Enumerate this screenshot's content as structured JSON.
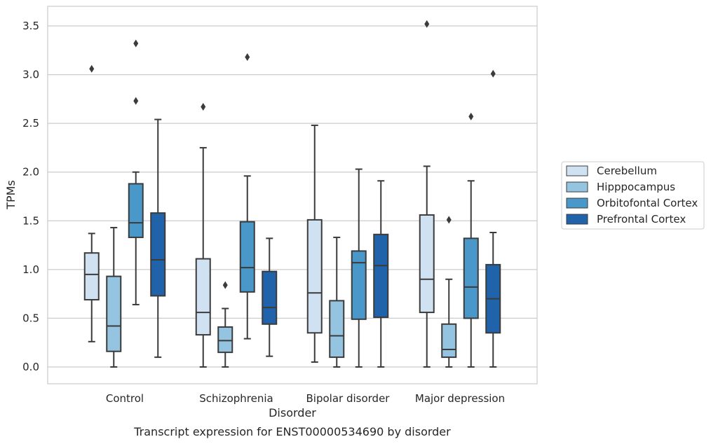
{
  "chart_data": {
    "type": "box",
    "caption": "Transcript expression for ENST00000534690 by disorder",
    "xlabel": "Disorder",
    "ylabel": "TPMs",
    "ylim": [
      -0.17,
      3.7
    ],
    "yticks": [
      0.0,
      0.5,
      1.0,
      1.5,
      2.0,
      2.5,
      3.0,
      3.5
    ],
    "ytick_labels": [
      "0.0",
      "0.5",
      "1.0",
      "1.5",
      "2.0",
      "2.5",
      "3.0",
      "3.5"
    ],
    "grid": "horizontal",
    "legend_placement": "right",
    "categories": [
      "Control",
      "Schizophrenia",
      "Bipolar disorder",
      "Major depression"
    ],
    "series": [
      {
        "name": "Cerebellum",
        "color": "#d0e1f2",
        "boxes": [
          {
            "whislo": 0.26,
            "q1": 0.69,
            "med": 0.95,
            "q3": 1.17,
            "whishi": 1.37,
            "fliers": [
              3.06
            ]
          },
          {
            "whislo": 0.0,
            "q1": 0.33,
            "med": 0.56,
            "q3": 1.11,
            "whishi": 2.25,
            "fliers": [
              2.67
            ]
          },
          {
            "whislo": 0.05,
            "q1": 0.35,
            "med": 0.76,
            "q3": 1.51,
            "whishi": 2.48,
            "fliers": []
          },
          {
            "whislo": 0.0,
            "q1": 0.56,
            "med": 0.9,
            "q3": 1.56,
            "whishi": 2.06,
            "fliers": [
              3.52
            ]
          }
        ]
      },
      {
        "name": "Hipppocampus",
        "color": "#94c4df",
        "boxes": [
          {
            "whislo": 0.0,
            "q1": 0.16,
            "med": 0.42,
            "q3": 0.93,
            "whishi": 1.43,
            "fliers": []
          },
          {
            "whislo": 0.0,
            "q1": 0.15,
            "med": 0.27,
            "q3": 0.41,
            "whishi": 0.6,
            "fliers": [
              0.84
            ]
          },
          {
            "whislo": 0.0,
            "q1": 0.1,
            "med": 0.32,
            "q3": 0.68,
            "whishi": 1.33,
            "fliers": []
          },
          {
            "whislo": 0.0,
            "q1": 0.1,
            "med": 0.18,
            "q3": 0.44,
            "whishi": 0.9,
            "fliers": [
              1.51
            ]
          }
        ]
      },
      {
        "name": "Orbitofontal Cortex",
        "color": "#4a98c9",
        "boxes": [
          {
            "whislo": 0.64,
            "q1": 1.33,
            "med": 1.48,
            "q3": 1.88,
            "whishi": 2.0,
            "fliers": [
              2.73,
              3.32
            ]
          },
          {
            "whislo": 0.29,
            "q1": 0.77,
            "med": 1.02,
            "q3": 1.49,
            "whishi": 1.96,
            "fliers": [
              3.18
            ]
          },
          {
            "whislo": 0.0,
            "q1": 0.49,
            "med": 1.07,
            "q3": 1.19,
            "whishi": 2.03,
            "fliers": []
          },
          {
            "whislo": 0.0,
            "q1": 0.5,
            "med": 0.82,
            "q3": 1.32,
            "whishi": 1.91,
            "fliers": [
              2.57
            ]
          }
        ]
      },
      {
        "name": "Prefrontal Cortex",
        "color": "#2163aa",
        "boxes": [
          {
            "whislo": 0.1,
            "q1": 0.73,
            "med": 1.1,
            "q3": 1.58,
            "whishi": 2.54,
            "fliers": []
          },
          {
            "whislo": 0.11,
            "q1": 0.44,
            "med": 0.61,
            "q3": 0.98,
            "whishi": 1.32,
            "fliers": []
          },
          {
            "whislo": 0.0,
            "q1": 0.51,
            "med": 1.04,
            "q3": 1.36,
            "whishi": 1.91,
            "fliers": []
          },
          {
            "whislo": 0.0,
            "q1": 0.35,
            "med": 0.7,
            "q3": 1.05,
            "whishi": 1.38,
            "fliers": [
              3.01
            ]
          }
        ]
      }
    ]
  }
}
